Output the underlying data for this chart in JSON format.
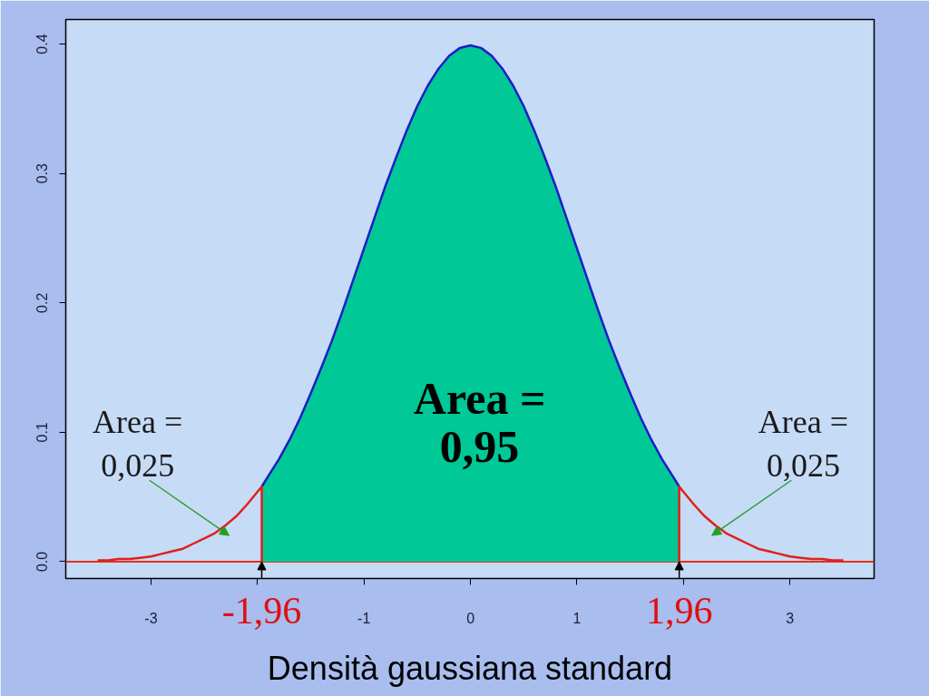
{
  "chart_data": {
    "type": "line",
    "xlabel": "Densità gaussiana standard",
    "xlim": [
      -3.8,
      3.79
    ],
    "ylim": [
      -0.013,
      0.419
    ],
    "xticks": [
      -3,
      {
        "value": -2,
        "label": null
      },
      -1,
      0,
      1,
      {
        "value": 2,
        "label": null
      },
      3
    ],
    "yticks": [
      {
        "value": 0,
        "label": "0.0"
      },
      0.1,
      0.2,
      0.3,
      0.4
    ],
    "grid": false,
    "series": [
      {
        "type": "area",
        "color": "#00c896",
        "x": [
          -1.96,
          -1.9,
          -1.8,
          -1.7,
          -1.6,
          -1.5,
          -1.4,
          -1.3,
          -1.2,
          -1.1,
          -1.0,
          -0.9,
          -0.8,
          -0.7,
          -0.6,
          -0.5,
          -0.4,
          -0.3,
          -0.2,
          -0.1,
          0,
          0.1,
          0.2,
          0.3,
          0.4,
          0.5,
          0.6,
          0.7,
          0.8,
          0.9,
          1.0,
          1.1,
          1.2,
          1.3,
          1.4,
          1.5,
          1.6,
          1.7,
          1.8,
          1.9,
          1.96
        ],
        "values": [
          0.058,
          0.066,
          0.079,
          0.094,
          0.111,
          0.13,
          0.15,
          0.171,
          0.194,
          0.218,
          0.242,
          0.266,
          0.29,
          0.312,
          0.333,
          0.352,
          0.368,
          0.381,
          0.391,
          0.397,
          0.399,
          0.397,
          0.391,
          0.381,
          0.368,
          0.352,
          0.333,
          0.312,
          0.29,
          0.266,
          0.242,
          0.218,
          0.194,
          0.171,
          0.15,
          0.13,
          0.111,
          0.094,
          0.079,
          0.066,
          0.058
        ]
      },
      {
        "color": "#1c1cc8",
        "x": [
          -1.96,
          -1.9,
          -1.8,
          -1.7,
          -1.6,
          -1.5,
          -1.4,
          -1.3,
          -1.2,
          -1.1,
          -1.0,
          -0.9,
          -0.8,
          -0.7,
          -0.6,
          -0.5,
          -0.4,
          -0.3,
          -0.2,
          -0.1,
          0,
          0.1,
          0.2,
          0.3,
          0.4,
          0.5,
          0.6,
          0.7,
          0.8,
          0.9,
          1.0,
          1.1,
          1.2,
          1.3,
          1.4,
          1.5,
          1.6,
          1.7,
          1.8,
          1.9,
          1.96
        ],
        "values": [
          0.058,
          0.066,
          0.079,
          0.094,
          0.111,
          0.13,
          0.15,
          0.171,
          0.194,
          0.218,
          0.242,
          0.266,
          0.29,
          0.312,
          0.333,
          0.352,
          0.368,
          0.381,
          0.391,
          0.397,
          0.399,
          0.397,
          0.391,
          0.381,
          0.368,
          0.352,
          0.333,
          0.312,
          0.29,
          0.266,
          0.242,
          0.218,
          0.194,
          0.171,
          0.15,
          0.13,
          0.111,
          0.094,
          0.079,
          0.066,
          0.058
        ]
      },
      {
        "color": "#e0201c",
        "x": [
          -3.5,
          -3.4,
          -3.3,
          -3.2,
          -3.1,
          -3.0,
          -2.9,
          -2.8,
          -2.7,
          -2.6,
          -2.5,
          -2.4,
          -2.3,
          -2.2,
          -2.1,
          -2.0,
          -1.96,
          -1.96
        ],
        "values": [
          0.001,
          0.001,
          0.002,
          0.002,
          0.003,
          0.004,
          0.006,
          0.008,
          0.01,
          0.014,
          0.018,
          0.022,
          0.028,
          0.035,
          0.044,
          0.054,
          0.058,
          0
        ]
      },
      {
        "color": "#e0201c",
        "x": [
          1.96,
          1.96,
          2.0,
          2.1,
          2.2,
          2.3,
          2.4,
          2.5,
          2.6,
          2.7,
          2.8,
          2.9,
          3.0,
          3.1,
          3.2,
          3.3,
          3.4,
          3.5
        ],
        "values": [
          0,
          0.058,
          0.054,
          0.044,
          0.035,
          0.028,
          0.022,
          0.018,
          0.014,
          0.01,
          0.008,
          0.006,
          0.004,
          0.003,
          0.002,
          0.002,
          0.001,
          0.001
        ]
      }
    ],
    "ref_lines": [
      {
        "axis": "y",
        "value": 0,
        "color": "#e8301e"
      }
    ],
    "annotations": [
      {
        "text": "Area =\n0,025",
        "x": -2.35,
        "y": 0.025
      },
      "Area =\n0,95",
      {
        "text": "Area =\n0,025",
        "x": 2.35,
        "y": 0.025
      },
      {
        "text": "-1,96",
        "x": -1.96,
        "y": 0
      },
      {
        "text": "1,96",
        "x": 1.96,
        "y": 0
      }
    ]
  }
}
